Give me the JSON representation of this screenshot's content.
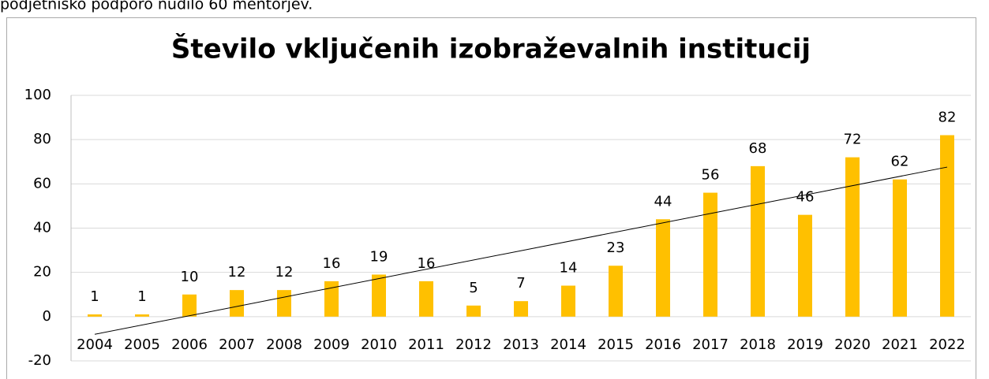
{
  "page_text": "podjetniško podporo nudilo 60 mentorjev.",
  "chart_data": {
    "type": "bar",
    "title": "Število vključenih izobraževalnih institucij",
    "categories": [
      "2004",
      "2005",
      "2006",
      "2007",
      "2008",
      "2009",
      "2010",
      "2011",
      "2012",
      "2013",
      "2014",
      "2015",
      "2016",
      "2017",
      "2018",
      "2019",
      "2020",
      "2021",
      "2022"
    ],
    "values": [
      1,
      1,
      10,
      12,
      12,
      16,
      19,
      16,
      5,
      7,
      14,
      23,
      44,
      56,
      68,
      46,
      72,
      62,
      82
    ],
    "color": "#ffc000",
    "ylim": [
      -20,
      100
    ],
    "yticks": [
      -20,
      0,
      20,
      40,
      60,
      80,
      100
    ],
    "grid": true,
    "trendline": "linear"
  }
}
